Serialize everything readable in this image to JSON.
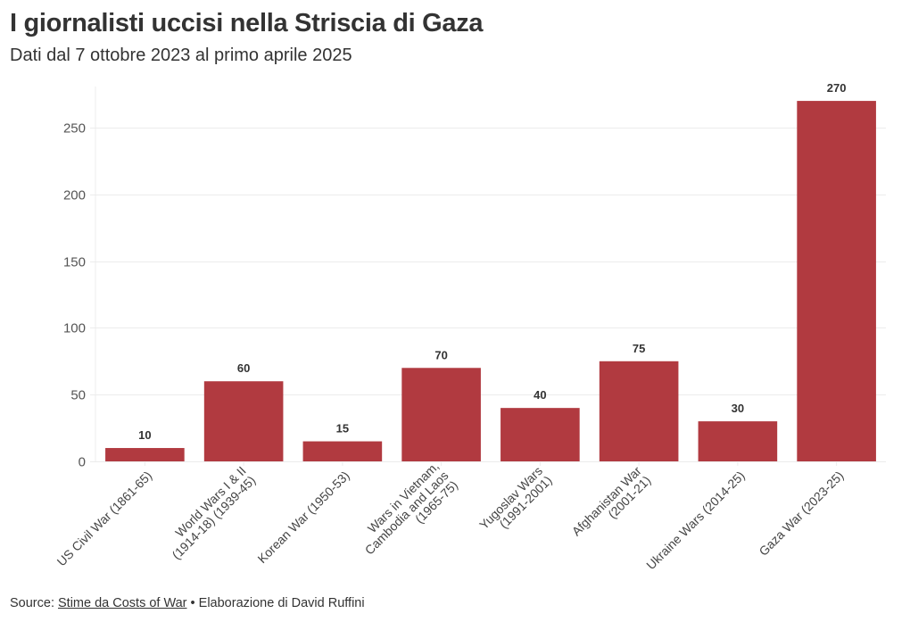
{
  "header": {
    "title": "I giornalisti uccisi nella Striscia di Gaza",
    "subtitle": "Dati dal 7 ottobre 2023 al primo aprile 2025"
  },
  "footer": {
    "source_prefix": "Source: ",
    "source_link": "Stime da Costs of War",
    "separator": " • ",
    "credit": "Elaborazione di David Ruffini"
  },
  "colors": {
    "bar": "#b13a40",
    "grid": "#ececec",
    "text": "#333333"
  },
  "chart_data": {
    "type": "bar",
    "title": "I giornalisti uccisi nella Striscia di Gaza",
    "subtitle": "Dati dal 7 ottobre 2023 al primo aprile 2025",
    "xlabel": "",
    "ylabel": "",
    "ylim": [
      0,
      280
    ],
    "yticks": [
      0,
      50,
      100,
      150,
      200,
      250
    ],
    "grid": true,
    "legend": "none",
    "categories": [
      [
        "US Civil War (1861-65)"
      ],
      [
        "World Wars I & II",
        "(1914-18) (1939-45)"
      ],
      [
        "Korean War (1950-53)"
      ],
      [
        "Wars in Vietnam,",
        "Cambodia and Laos",
        "(1965-75)"
      ],
      [
        "Yugoslav Wars",
        "(1991-2001)"
      ],
      [
        "Afghanistan War",
        "(2001-21)"
      ],
      [
        "Ukraine Wars (2014-25)"
      ],
      [
        "Gaza War (2023-25)"
      ]
    ],
    "values": [
      10,
      60,
      15,
      70,
      40,
      75,
      30,
      270
    ],
    "data_labels": [
      "10",
      "60",
      "15",
      "70",
      "40",
      "75",
      "30",
      "270"
    ]
  }
}
